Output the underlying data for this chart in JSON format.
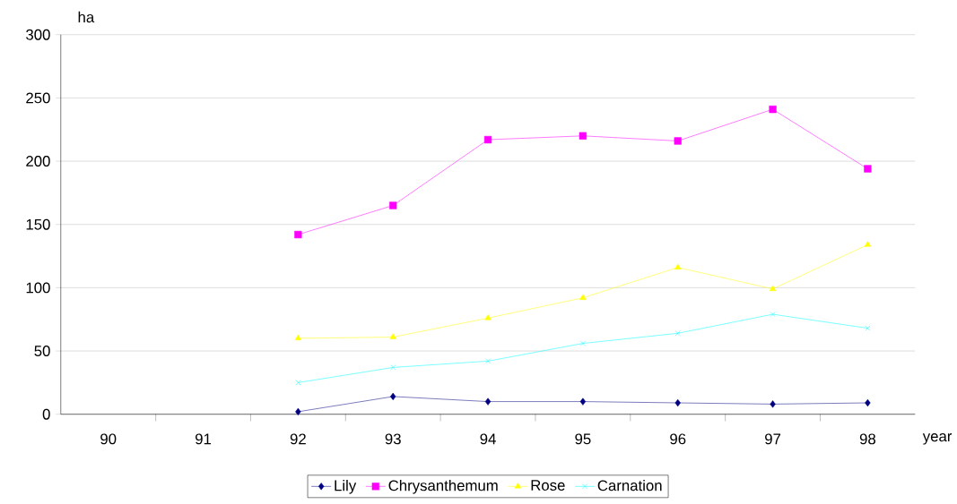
{
  "chart_data": {
    "type": "line",
    "xlabel": "year",
    "ylabel": "ha",
    "categories": [
      "90",
      "91",
      "92",
      "93",
      "94",
      "95",
      "96",
      "97",
      "98"
    ],
    "series": [
      {
        "name": "Lily",
        "color": "#000080",
        "marker": "diamond",
        "values": [
          null,
          null,
          2,
          14,
          10,
          10,
          9,
          8,
          9
        ]
      },
      {
        "name": "Chrysanthemum",
        "color": "#ff00ff",
        "marker": "square",
        "values": [
          null,
          null,
          142,
          165,
          217,
          220,
          216,
          241,
          194
        ]
      },
      {
        "name": "Rose",
        "color": "#ffff00",
        "marker": "triangle",
        "values": [
          null,
          null,
          60,
          61,
          76,
          92,
          116,
          99,
          134
        ]
      },
      {
        "name": "Carnation",
        "color": "#00ffff",
        "marker": "cross",
        "values": [
          null,
          null,
          25,
          37,
          42,
          56,
          64,
          79,
          68
        ]
      }
    ],
    "ylim": [
      0,
      300
    ],
    "yticks": [
      0,
      50,
      100,
      150,
      200,
      250,
      300
    ],
    "grid": "y",
    "legend": "bottom"
  }
}
